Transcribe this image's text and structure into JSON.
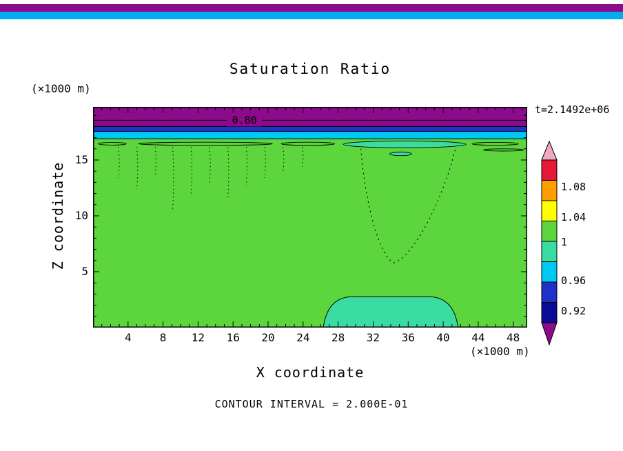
{
  "colors": {
    "purple": "#8B0B8B",
    "blue": "#1E32C8",
    "navy": "#0A0A96",
    "cyan": "#00C8F5",
    "teal": "#3ADCA2",
    "green": "#5CD63C",
    "yellow": "#FFFF00",
    "orange": "#FF9E00",
    "red": "#E51937",
    "pink": "#F2A9BE",
    "strip_blue": "#00AEEF",
    "axis": "#000000"
  },
  "chart_data": {
    "type": "heatmap",
    "title": "Saturation Ratio",
    "time_annotation": "t=2.1492e+06",
    "xlabel": "X coordinate",
    "ylabel": "Z coordinate",
    "x_units": "(×1000 m)",
    "y_units": "(×1000 m)",
    "contour_interval_note": "CONTOUR INTERVAL = 2.000E-01",
    "xlim": [
      0,
      49.6
    ],
    "ylim": [
      0,
      19.75
    ],
    "x_ticks": [
      4,
      8,
      12,
      16,
      20,
      24,
      28,
      32,
      36,
      40,
      44,
      48
    ],
    "y_ticks": [
      5,
      10,
      15
    ],
    "x_minor_step": 1,
    "y_minor_step": 1,
    "background_value": 1,
    "background_color": "green",
    "bands": [
      {
        "name": "top-cap-band",
        "color": "purple",
        "z0": 18.0,
        "z1": 19.75
      },
      {
        "name": "transition-band",
        "color": "blue",
        "z0": 17.55,
        "z1": 18.0
      },
      {
        "name": "transition-band",
        "color": "cyan",
        "z0": 16.9,
        "z1": 17.55
      }
    ],
    "contour_line": {
      "value": "0.80",
      "z": 18.55,
      "label_x": 17.3
    },
    "lenses": [
      {
        "x0": 0.6,
        "x1": 3.8,
        "z": 16.45,
        "ry": 0.12,
        "color": "green"
      },
      {
        "x0": 5.2,
        "x1": 20.5,
        "z": 16.45,
        "ry": 0.14,
        "color": "green"
      },
      {
        "x0": 21.5,
        "x1": 27.6,
        "z": 16.45,
        "ry": 0.14,
        "color": "green"
      },
      {
        "x0": 28.6,
        "x1": 42.6,
        "z": 16.4,
        "ry": 0.3,
        "color": "teal"
      },
      {
        "x0": 43.3,
        "x1": 48.6,
        "z": 16.45,
        "ry": 0.13,
        "color": "green"
      },
      {
        "x0": 33.9,
        "x1": 36.4,
        "z": 15.55,
        "ry": 0.16,
        "color": "teal"
      },
      {
        "x0": 44.6,
        "x1": 49.2,
        "z": 15.9,
        "ry": 0.1,
        "color": "green"
      }
    ],
    "drip_contours": [
      {
        "x": 2.9,
        "z_top": 16.15,
        "z_bottom": 13.4
      },
      {
        "x": 5.0,
        "z_top": 16.15,
        "z_bottom": 12.4
      },
      {
        "x": 7.1,
        "z_top": 16.15,
        "z_bottom": 13.7
      },
      {
        "x": 9.1,
        "z_top": 16.15,
        "z_bottom": 10.6
      },
      {
        "x": 11.2,
        "z_top": 16.15,
        "z_bottom": 12.0
      },
      {
        "x": 13.3,
        "z_top": 16.15,
        "z_bottom": 12.9
      },
      {
        "x": 15.4,
        "z_top": 16.15,
        "z_bottom": 11.6
      },
      {
        "x": 17.5,
        "z_top": 16.15,
        "z_bottom": 12.7
      },
      {
        "x": 19.6,
        "z_top": 16.15,
        "z_bottom": 13.4
      },
      {
        "x": 21.7,
        "z_top": 16.15,
        "z_bottom": 13.9
      },
      {
        "x": 23.9,
        "z_top": 16.15,
        "z_bottom": 14.4
      }
    ],
    "u_contour": {
      "x_left": 30.6,
      "x_right": 41.4,
      "z_top": 16.0,
      "x_bottom": 34.4,
      "z_bottom": 5.8
    },
    "bottom_pool": {
      "x0": 26.3,
      "x1": 41.7,
      "z_top": 2.75,
      "color": "teal"
    },
    "colorbar": {
      "tick_labels": [
        "1.08",
        "1.04",
        "1",
        "0.96",
        "0.92"
      ],
      "segments": [
        "pink",
        "red",
        "orange",
        "yellow",
        "green",
        "teal",
        "cyan",
        "blue",
        "navy",
        "purple"
      ]
    }
  }
}
